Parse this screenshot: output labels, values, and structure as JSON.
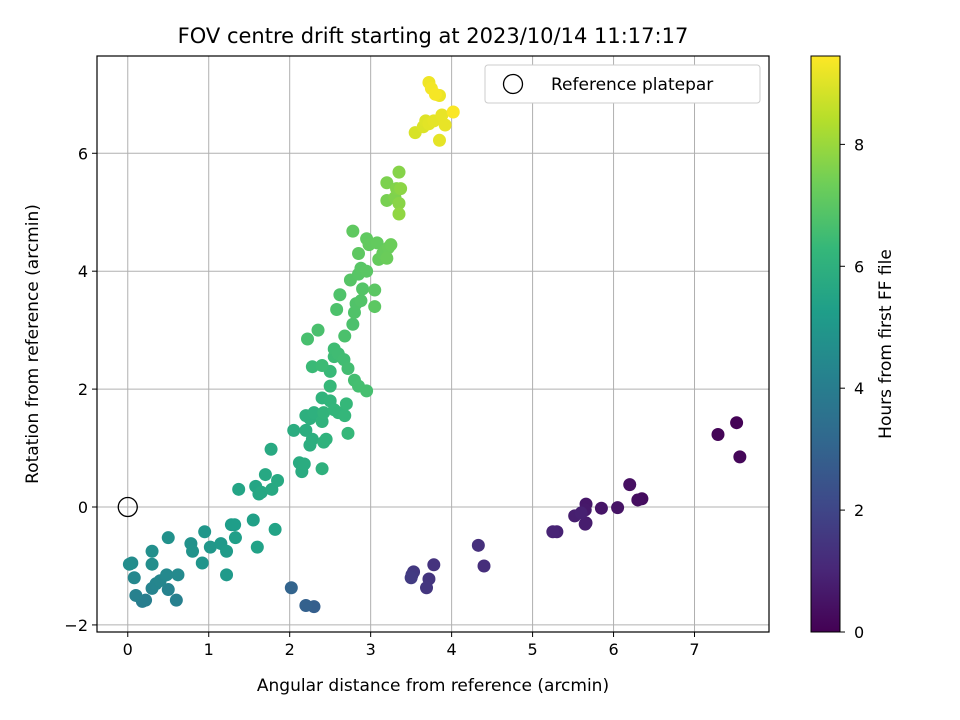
{
  "chart_data": {
    "type": "scatter",
    "title": "FOV centre drift starting at 2023/10/14 11:17:17",
    "xlabel": "Angular distance from reference (arcmin)",
    "ylabel": "Rotation from reference (arcmin)",
    "xlim": [
      -0.38,
      7.92
    ],
    "ylim": [
      -2.12,
      7.65
    ],
    "xticks": [
      0,
      1,
      2,
      3,
      4,
      5,
      6,
      7
    ],
    "yticks": [
      -2,
      0,
      2,
      4,
      6
    ],
    "grid": true,
    "legend": {
      "position": "top-right",
      "entries": [
        {
          "label": "Reference platepar",
          "marker": "open-circle"
        }
      ]
    },
    "reference_point": {
      "x": 0,
      "y": 0
    },
    "colorbar": {
      "label": "Hours from first FF file",
      "colormap": "viridis",
      "range": [
        0,
        9.45
      ],
      "ticks": [
        0,
        2,
        4,
        6,
        8
      ]
    },
    "colormap_stops": [
      "#440154",
      "#482878",
      "#3e4989",
      "#31688e",
      "#26828e",
      "#1f9e89",
      "#35b779",
      "#6ece58",
      "#b5de2b",
      "#fde725"
    ],
    "points": [
      {
        "x": 7.52,
        "y": 1.43,
        "h": 0.05
      },
      {
        "x": 7.29,
        "y": 1.23,
        "h": 0.1
      },
      {
        "x": 7.56,
        "y": 0.85,
        "h": 0.15
      },
      {
        "x": 6.35,
        "y": 0.14,
        "h": 0.3
      },
      {
        "x": 6.3,
        "y": 0.12,
        "h": 0.35
      },
      {
        "x": 6.2,
        "y": 0.38,
        "h": 0.4
      },
      {
        "x": 6.05,
        "y": -0.01,
        "h": 0.5
      },
      {
        "x": 5.85,
        "y": -0.02,
        "h": 0.55
      },
      {
        "x": 5.66,
        "y": 0.05,
        "h": 0.6
      },
      {
        "x": 5.65,
        "y": -0.05,
        "h": 0.65
      },
      {
        "x": 5.66,
        "y": -0.27,
        "h": 0.7
      },
      {
        "x": 5.65,
        "y": -0.29,
        "h": 0.75
      },
      {
        "x": 5.52,
        "y": -0.15,
        "h": 0.8
      },
      {
        "x": 5.6,
        "y": -0.1,
        "h": 0.85
      },
      {
        "x": 5.3,
        "y": -0.42,
        "h": 0.9
      },
      {
        "x": 5.25,
        "y": -0.42,
        "h": 0.95
      },
      {
        "x": 4.4,
        "y": -1.0,
        "h": 1.25
      },
      {
        "x": 4.33,
        "y": -0.65,
        "h": 1.3
      },
      {
        "x": 3.78,
        "y": -0.98,
        "h": 1.4
      },
      {
        "x": 3.72,
        "y": -1.22,
        "h": 1.45
      },
      {
        "x": 3.69,
        "y": -1.37,
        "h": 1.5
      },
      {
        "x": 3.53,
        "y": -1.1,
        "h": 1.55
      },
      {
        "x": 3.51,
        "y": -1.15,
        "h": 1.6
      },
      {
        "x": 3.5,
        "y": -1.2,
        "h": 1.65
      },
      {
        "x": 2.3,
        "y": -1.69,
        "h": 2.85
      },
      {
        "x": 2.2,
        "y": -1.67,
        "h": 2.9
      },
      {
        "x": 2.02,
        "y": -1.37,
        "h": 3.0
      },
      {
        "x": 0.18,
        "y": -1.6,
        "h": 4.0
      },
      {
        "x": 0.22,
        "y": -1.58,
        "h": 4.05
      },
      {
        "x": 0.6,
        "y": -1.58,
        "h": 4.1
      },
      {
        "x": 0.1,
        "y": -1.5,
        "h": 4.15
      },
      {
        "x": 0.5,
        "y": -1.4,
        "h": 4.2
      },
      {
        "x": 0.3,
        "y": -1.38,
        "h": 4.25
      },
      {
        "x": 0.35,
        "y": -1.3,
        "h": 4.3
      },
      {
        "x": 0.4,
        "y": -1.25,
        "h": 4.35
      },
      {
        "x": 0.08,
        "y": -1.2,
        "h": 4.4
      },
      {
        "x": 0.48,
        "y": -1.15,
        "h": 4.45
      },
      {
        "x": 0.62,
        "y": -1.15,
        "h": 4.5
      },
      {
        "x": 0.05,
        "y": -0.95,
        "h": 4.55
      },
      {
        "x": 0.02,
        "y": -0.97,
        "h": 4.6
      },
      {
        "x": 0.3,
        "y": -0.97,
        "h": 4.65
      },
      {
        "x": 0.3,
        "y": -0.75,
        "h": 4.7
      },
      {
        "x": 0.5,
        "y": -0.52,
        "h": 4.75
      },
      {
        "x": 0.78,
        "y": -0.62,
        "h": 4.8
      },
      {
        "x": 0.8,
        "y": -0.75,
        "h": 4.85
      },
      {
        "x": 0.92,
        "y": -0.95,
        "h": 4.9
      },
      {
        "x": 0.95,
        "y": -0.42,
        "h": 4.95
      },
      {
        "x": 1.02,
        "y": -0.68,
        "h": 5.0
      },
      {
        "x": 1.15,
        "y": -0.62,
        "h": 5.05
      },
      {
        "x": 1.22,
        "y": -1.15,
        "h": 5.1
      },
      {
        "x": 1.22,
        "y": -0.75,
        "h": 5.15
      },
      {
        "x": 1.28,
        "y": -0.3,
        "h": 5.2
      },
      {
        "x": 1.32,
        "y": -0.3,
        "h": 5.25
      },
      {
        "x": 1.33,
        "y": -0.52,
        "h": 5.3
      },
      {
        "x": 1.55,
        "y": -0.22,
        "h": 5.35
      },
      {
        "x": 1.6,
        "y": -0.68,
        "h": 5.4
      },
      {
        "x": 1.82,
        "y": -0.38,
        "h": 5.45
      },
      {
        "x": 1.37,
        "y": 0.3,
        "h": 5.5
      },
      {
        "x": 1.58,
        "y": 0.35,
        "h": 5.55
      },
      {
        "x": 1.62,
        "y": 0.22,
        "h": 5.6
      },
      {
        "x": 1.65,
        "y": 0.25,
        "h": 5.62
      },
      {
        "x": 1.7,
        "y": 0.55,
        "h": 5.65
      },
      {
        "x": 1.78,
        "y": 0.3,
        "h": 5.68
      },
      {
        "x": 1.85,
        "y": 0.45,
        "h": 5.7
      },
      {
        "x": 1.77,
        "y": 0.98,
        "h": 5.72
      },
      {
        "x": 2.12,
        "y": 0.75,
        "h": 5.78
      },
      {
        "x": 2.15,
        "y": 0.6,
        "h": 5.8
      },
      {
        "x": 2.18,
        "y": 0.73,
        "h": 5.82
      },
      {
        "x": 2.05,
        "y": 1.3,
        "h": 5.85
      },
      {
        "x": 2.2,
        "y": 1.3,
        "h": 5.88
      },
      {
        "x": 2.25,
        "y": 1.05,
        "h": 5.9
      },
      {
        "x": 2.28,
        "y": 1.15,
        "h": 5.92
      },
      {
        "x": 2.2,
        "y": 1.55,
        "h": 5.95
      },
      {
        "x": 2.25,
        "y": 1.5,
        "h": 5.98
      },
      {
        "x": 2.3,
        "y": 1.6,
        "h": 6.0
      },
      {
        "x": 2.4,
        "y": 0.65,
        "h": 6.02
      },
      {
        "x": 2.42,
        "y": 1.1,
        "h": 6.05
      },
      {
        "x": 2.45,
        "y": 1.15,
        "h": 6.08
      },
      {
        "x": 2.4,
        "y": 1.45,
        "h": 6.1
      },
      {
        "x": 2.4,
        "y": 1.85,
        "h": 6.12
      },
      {
        "x": 2.42,
        "y": 1.6,
        "h": 6.15
      },
      {
        "x": 2.5,
        "y": 1.8,
        "h": 6.18
      },
      {
        "x": 2.55,
        "y": 1.65,
        "h": 6.2
      },
      {
        "x": 2.6,
        "y": 1.6,
        "h": 6.22
      },
      {
        "x": 2.68,
        "y": 1.55,
        "h": 6.25
      },
      {
        "x": 2.72,
        "y": 1.25,
        "h": 6.28
      },
      {
        "x": 2.7,
        "y": 1.75,
        "h": 6.3
      },
      {
        "x": 2.5,
        "y": 2.05,
        "h": 6.32
      },
      {
        "x": 2.5,
        "y": 2.3,
        "h": 6.35
      },
      {
        "x": 2.28,
        "y": 2.38,
        "h": 6.4
      },
      {
        "x": 2.4,
        "y": 2.4,
        "h": 6.42
      },
      {
        "x": 2.55,
        "y": 2.55,
        "h": 6.45
      },
      {
        "x": 2.55,
        "y": 2.68,
        "h": 6.48
      },
      {
        "x": 2.6,
        "y": 2.6,
        "h": 6.5
      },
      {
        "x": 2.67,
        "y": 2.5,
        "h": 6.52
      },
      {
        "x": 2.72,
        "y": 2.35,
        "h": 6.55
      },
      {
        "x": 2.8,
        "y": 2.15,
        "h": 6.58
      },
      {
        "x": 2.85,
        "y": 2.05,
        "h": 6.6
      },
      {
        "x": 2.95,
        "y": 1.97,
        "h": 6.62
      },
      {
        "x": 2.22,
        "y": 2.85,
        "h": 6.65
      },
      {
        "x": 2.35,
        "y": 3.0,
        "h": 6.68
      },
      {
        "x": 2.68,
        "y": 2.9,
        "h": 6.7
      },
      {
        "x": 2.78,
        "y": 3.1,
        "h": 6.72
      },
      {
        "x": 2.58,
        "y": 3.35,
        "h": 6.75
      },
      {
        "x": 2.62,
        "y": 3.6,
        "h": 6.78
      },
      {
        "x": 2.8,
        "y": 3.3,
        "h": 6.8
      },
      {
        "x": 2.82,
        "y": 3.45,
        "h": 6.82
      },
      {
        "x": 2.88,
        "y": 3.5,
        "h": 6.85
      },
      {
        "x": 2.9,
        "y": 3.7,
        "h": 6.88
      },
      {
        "x": 2.75,
        "y": 3.85,
        "h": 6.9
      },
      {
        "x": 2.85,
        "y": 3.95,
        "h": 6.92
      },
      {
        "x": 2.88,
        "y": 4.05,
        "h": 6.95
      },
      {
        "x": 2.95,
        "y": 4.0,
        "h": 6.98
      },
      {
        "x": 3.05,
        "y": 3.68,
        "h": 7.0
      },
      {
        "x": 3.05,
        "y": 3.4,
        "h": 7.02
      },
      {
        "x": 2.85,
        "y": 4.3,
        "h": 7.05
      },
      {
        "x": 2.78,
        "y": 4.68,
        "h": 7.08
      },
      {
        "x": 2.95,
        "y": 4.55,
        "h": 7.1
      },
      {
        "x": 2.98,
        "y": 4.45,
        "h": 7.12
      },
      {
        "x": 3.08,
        "y": 4.48,
        "h": 7.15
      },
      {
        "x": 3.1,
        "y": 4.2,
        "h": 7.18
      },
      {
        "x": 3.15,
        "y": 4.3,
        "h": 7.2
      },
      {
        "x": 3.18,
        "y": 4.35,
        "h": 7.22
      },
      {
        "x": 3.22,
        "y": 4.4,
        "h": 7.25
      },
      {
        "x": 3.2,
        "y": 4.22,
        "h": 7.28
      },
      {
        "x": 3.25,
        "y": 4.45,
        "h": 7.3
      },
      {
        "x": 3.2,
        "y": 5.2,
        "h": 7.5
      },
      {
        "x": 3.2,
        "y": 5.5,
        "h": 7.55
      },
      {
        "x": 3.3,
        "y": 5.25,
        "h": 7.6
      },
      {
        "x": 3.32,
        "y": 5.4,
        "h": 7.65
      },
      {
        "x": 3.35,
        "y": 5.68,
        "h": 7.7
      },
      {
        "x": 3.35,
        "y": 5.15,
        "h": 7.75
      },
      {
        "x": 3.37,
        "y": 5.4,
        "h": 7.8
      },
      {
        "x": 3.35,
        "y": 4.97,
        "h": 7.85
      },
      {
        "x": 3.55,
        "y": 6.35,
        "h": 8.9
      },
      {
        "x": 3.65,
        "y": 6.45,
        "h": 8.95
      },
      {
        "x": 3.68,
        "y": 6.55,
        "h": 9.0
      },
      {
        "x": 3.72,
        "y": 6.5,
        "h": 9.05
      },
      {
        "x": 3.78,
        "y": 6.55,
        "h": 9.1
      },
      {
        "x": 3.85,
        "y": 6.22,
        "h": 9.1
      },
      {
        "x": 3.88,
        "y": 6.65,
        "h": 9.15
      },
      {
        "x": 3.92,
        "y": 6.48,
        "h": 9.15
      },
      {
        "x": 3.85,
        "y": 6.98,
        "h": 9.2
      },
      {
        "x": 3.72,
        "y": 7.2,
        "h": 9.25
      },
      {
        "x": 3.75,
        "y": 7.1,
        "h": 9.3
      },
      {
        "x": 3.8,
        "y": 7.0,
        "h": 9.35
      },
      {
        "x": 4.02,
        "y": 6.7,
        "h": 9.4
      }
    ]
  }
}
